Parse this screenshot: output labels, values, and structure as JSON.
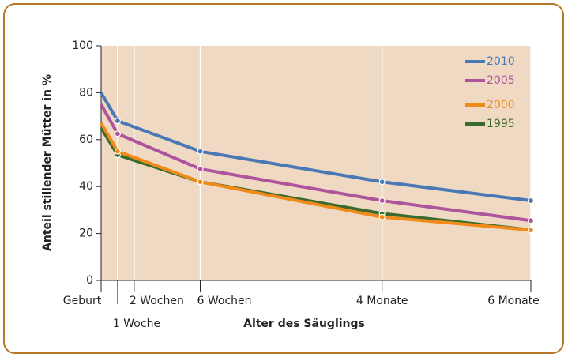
{
  "chart_data": {
    "type": "line",
    "ylabel": "Anteil stillender Mütter in %",
    "xlabel": "Alter des Säuglings",
    "x": [
      0,
      1,
      6,
      17,
      26
    ],
    "xlim": [
      0,
      26
    ],
    "xticks": [
      {
        "value": 0,
        "label": "Geburt"
      },
      {
        "value": 1,
        "label": "1 Woche"
      },
      {
        "value": 2,
        "label": "2 Wochen"
      },
      {
        "value": 6,
        "label": "6 Wochen"
      },
      {
        "value": 17,
        "label": "4 Monate"
      },
      {
        "value": 26,
        "label": "6 Monate"
      }
    ],
    "ylim": [
      0,
      100
    ],
    "yticks": [
      0,
      20,
      40,
      60,
      80,
      100
    ],
    "grid": true,
    "legend": "upper right",
    "series": [
      {
        "name": "2010",
        "color": "#4a78b6",
        "values": [
          80,
          68,
          55,
          42,
          34
        ]
      },
      {
        "name": "2005",
        "color": "#ad549c",
        "values": [
          75,
          62.5,
          47.5,
          34,
          25.5
        ]
      },
      {
        "name": "2000",
        "color": "#f28a1a",
        "values": [
          67,
          55,
          42,
          27,
          21.5
        ]
      },
      {
        "name": "1995",
        "color": "#386b2c",
        "values": [
          65,
          53.5,
          42,
          28.5,
          21.5
        ]
      }
    ]
  }
}
